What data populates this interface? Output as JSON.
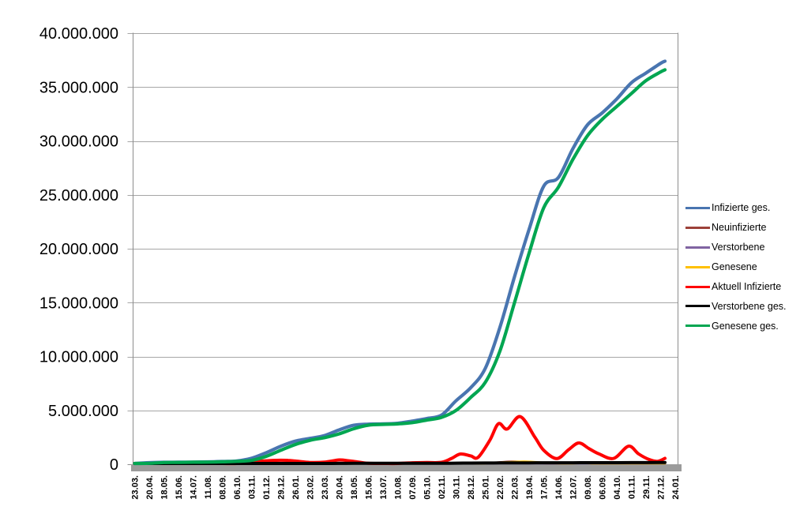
{
  "chart_data": {
    "type": "line",
    "title": "",
    "xlabel": "",
    "ylabel": "",
    "grid": "horizontal",
    "legend_position": "right",
    "background": "#FFFFFF",
    "colors": {
      "gridline": "#A6A6A6",
      "axis_line": "#8C8C8C",
      "x_axis_bar": "#9B9B9B",
      "text": "#000000"
    },
    "y_axis": {
      "min": 0,
      "max": 40000000,
      "step": 5000000,
      "tick_labels": [
        "0",
        "5.000.000",
        "10.000.000",
        "15.000.000",
        "20.000.000",
        "25.000.000",
        "30.000.000",
        "35.000.000",
        "40.000.000"
      ]
    },
    "x_axis": {
      "tick_labels": [
        "23.03.",
        "20.04.",
        "18.05.",
        "15.06.",
        "14.07.",
        "11.08.",
        "08.09.",
        "06.10.",
        "03.11.",
        "01.12.",
        "29.12.",
        "26.01.",
        "23.02.",
        "23.03.",
        "20.04.",
        "18.05.",
        "15.06.",
        "13.07.",
        "10.08.",
        "07.09.",
        "05.10.",
        "02.11.",
        "30.11.",
        "28.12.",
        "25.01.",
        "22.02.",
        "22.03.",
        "19.04.",
        "17.05.",
        "14.06.",
        "12.07.",
        "09.08.",
        "06.09.",
        "04.10.",
        "01.11.",
        "29.11.",
        "27.12.",
        "24.01."
      ]
    },
    "value_unit": "millions",
    "series": [
      {
        "name": "Infizierte ges.",
        "color": "#4975B0",
        "width": 4.2,
        "points": [
          [
            0,
            0.03
          ],
          [
            1,
            0.15
          ],
          [
            2,
            0.18
          ],
          [
            3,
            0.19
          ],
          [
            4,
            0.2
          ],
          [
            5,
            0.22
          ],
          [
            6,
            0.26
          ],
          [
            7,
            0.31
          ],
          [
            8,
            0.56
          ],
          [
            9,
            1.07
          ],
          [
            10,
            1.67
          ],
          [
            11,
            2.15
          ],
          [
            12,
            2.4
          ],
          [
            13,
            2.67
          ],
          [
            14,
            3.19
          ],
          [
            15,
            3.62
          ],
          [
            16,
            3.72
          ],
          [
            17,
            3.74
          ],
          [
            18,
            3.8
          ],
          [
            19,
            4.01
          ],
          [
            20,
            4.25
          ],
          [
            21,
            4.56
          ],
          [
            22,
            5.9
          ],
          [
            23,
            7.1
          ],
          [
            24,
            8.9
          ],
          [
            25,
            12.7
          ],
          [
            26,
            17.4
          ],
          [
            27,
            21.8
          ],
          [
            28,
            25.8
          ],
          [
            29,
            26.6
          ],
          [
            30,
            29.3
          ],
          [
            31,
            31.5
          ],
          [
            32,
            32.6
          ],
          [
            33,
            33.9
          ],
          [
            34,
            35.4
          ],
          [
            35,
            36.3
          ],
          [
            36,
            37.2
          ],
          [
            36.3,
            37.4
          ]
        ]
      },
      {
        "name": "Neuinfizierte",
        "color": "#9C4139",
        "width": 2.6,
        "points": [
          [
            0,
            0.005
          ],
          [
            2,
            0.004
          ],
          [
            4,
            0.001
          ],
          [
            6,
            0.002
          ],
          [
            7,
            0.004
          ],
          [
            8,
            0.018
          ],
          [
            9,
            0.019
          ],
          [
            10,
            0.025
          ],
          [
            11,
            0.014
          ],
          [
            12,
            0.008
          ],
          [
            13,
            0.016
          ],
          [
            14,
            0.023
          ],
          [
            15,
            0.01
          ],
          [
            16,
            0.003
          ],
          [
            17,
            0.001
          ],
          [
            18,
            0.005
          ],
          [
            19,
            0.01
          ],
          [
            20,
            0.009
          ],
          [
            21,
            0.02
          ],
          [
            22,
            0.055
          ],
          [
            23,
            0.04
          ],
          [
            24,
            0.1
          ],
          [
            25,
            0.19
          ],
          [
            25.8,
            0.25
          ],
          [
            26.5,
            0.23
          ],
          [
            27,
            0.18
          ],
          [
            28,
            0.09
          ],
          [
            29,
            0.07
          ],
          [
            30,
            0.11
          ],
          [
            30.7,
            0.12
          ],
          [
            31.5,
            0.07
          ],
          [
            32.5,
            0.05
          ],
          [
            33.5,
            0.09
          ],
          [
            34,
            0.07
          ],
          [
            35,
            0.03
          ],
          [
            36,
            0.035
          ],
          [
            36.3,
            0.03
          ]
        ]
      },
      {
        "name": "Verstorbene",
        "color": "#8064A2",
        "width": 2.6,
        "points": [
          [
            0,
            0.001
          ],
          [
            8,
            0.002
          ],
          [
            9,
            0.006
          ],
          [
            10,
            0.009
          ],
          [
            11,
            0.008
          ],
          [
            12,
            0.005
          ],
          [
            13,
            0.003
          ],
          [
            14,
            0.002
          ],
          [
            15,
            0.002
          ],
          [
            16,
            0.001
          ],
          [
            18,
            0.001
          ],
          [
            20,
            0.001
          ],
          [
            21,
            0.001
          ],
          [
            22,
            0.003
          ],
          [
            23,
            0.004
          ],
          [
            24,
            0.002
          ],
          [
            25,
            0.002
          ],
          [
            26,
            0.003
          ],
          [
            27,
            0.003
          ],
          [
            28,
            0.002
          ],
          [
            29,
            0.001
          ],
          [
            30,
            0.002
          ],
          [
            31,
            0.002
          ],
          [
            32,
            0.001
          ],
          [
            33,
            0.002
          ],
          [
            34,
            0.002
          ],
          [
            35,
            0.002
          ],
          [
            36,
            0.002
          ],
          [
            36.3,
            0.002
          ]
        ]
      },
      {
        "name": "Genesene",
        "color": "#FFC000",
        "width": 2.6,
        "points": [
          [
            0,
            0.002
          ],
          [
            1,
            0.005
          ],
          [
            2,
            0.003
          ],
          [
            4,
            0.001
          ],
          [
            6,
            0.001
          ],
          [
            7,
            0.003
          ],
          [
            8,
            0.012
          ],
          [
            9,
            0.017
          ],
          [
            10,
            0.023
          ],
          [
            11,
            0.016
          ],
          [
            12,
            0.009
          ],
          [
            13,
            0.013
          ],
          [
            14,
            0.02
          ],
          [
            15,
            0.013
          ],
          [
            16,
            0.005
          ],
          [
            17,
            0.001
          ],
          [
            18,
            0.004
          ],
          [
            19,
            0.008
          ],
          [
            20,
            0.008
          ],
          [
            21,
            0.016
          ],
          [
            22,
            0.05
          ],
          [
            23,
            0.045
          ],
          [
            24,
            0.08
          ],
          [
            25,
            0.16
          ],
          [
            26,
            0.23
          ],
          [
            26.7,
            0.25
          ],
          [
            27.5,
            0.2
          ],
          [
            28.5,
            0.1
          ],
          [
            29.5,
            0.06
          ],
          [
            30.5,
            0.1
          ],
          [
            31.5,
            0.08
          ],
          [
            32.5,
            0.05
          ],
          [
            33.5,
            0.07
          ],
          [
            34.5,
            0.06
          ],
          [
            35.5,
            0.03
          ],
          [
            36.3,
            0.025
          ]
        ]
      },
      {
        "name": "Aktuell Infizierte",
        "color": "#FF0000",
        "width": 4,
        "points": [
          [
            0,
            0.02
          ],
          [
            0.6,
            0.06
          ],
          [
            1,
            0.05
          ],
          [
            2,
            0.02
          ],
          [
            3,
            0.01
          ],
          [
            4,
            0.01
          ],
          [
            5,
            0.02
          ],
          [
            6,
            0.03
          ],
          [
            7,
            0.05
          ],
          [
            8,
            0.19
          ],
          [
            9,
            0.32
          ],
          [
            10,
            0.37
          ],
          [
            10.5,
            0.36
          ],
          [
            11,
            0.3
          ],
          [
            12,
            0.17
          ],
          [
            13,
            0.2
          ],
          [
            14,
            0.4
          ],
          [
            14.6,
            0.33
          ],
          [
            15,
            0.27
          ],
          [
            16,
            0.09
          ],
          [
            17,
            0.03
          ],
          [
            18,
            0.06
          ],
          [
            19,
            0.14
          ],
          [
            20,
            0.16
          ],
          [
            21,
            0.18
          ],
          [
            21.7,
            0.55
          ],
          [
            22.3,
            0.95
          ],
          [
            23,
            0.78
          ],
          [
            23.5,
            0.64
          ],
          [
            24.3,
            2.2
          ],
          [
            24.9,
            3.76
          ],
          [
            25.5,
            3.27
          ],
          [
            26.4,
            4.42
          ],
          [
            27.4,
            2.5
          ],
          [
            28,
            1.3
          ],
          [
            28.9,
            0.53
          ],
          [
            29.7,
            1.35
          ],
          [
            30.4,
            1.98
          ],
          [
            31.1,
            1.45
          ],
          [
            31.8,
            0.95
          ],
          [
            32.8,
            0.55
          ],
          [
            33.8,
            1.68
          ],
          [
            34.5,
            0.95
          ],
          [
            35.2,
            0.45
          ],
          [
            35.8,
            0.27
          ],
          [
            36.3,
            0.55
          ]
        ]
      },
      {
        "name": "Verstorbene ges.",
        "color": "#000000",
        "width": 4,
        "points": [
          [
            0,
            0.002
          ],
          [
            2,
            0.008
          ],
          [
            4,
            0.009
          ],
          [
            6,
            0.009
          ],
          [
            8,
            0.011
          ],
          [
            9,
            0.017
          ],
          [
            10,
            0.033
          ],
          [
            11,
            0.054
          ],
          [
            12,
            0.068
          ],
          [
            13,
            0.075
          ],
          [
            14,
            0.08
          ],
          [
            15,
            0.086
          ],
          [
            16,
            0.09
          ],
          [
            17,
            0.091
          ],
          [
            18,
            0.092
          ],
          [
            19,
            0.093
          ],
          [
            20,
            0.094
          ],
          [
            21,
            0.096
          ],
          [
            22,
            0.101
          ],
          [
            23,
            0.111
          ],
          [
            24,
            0.117
          ],
          [
            25,
            0.121
          ],
          [
            26,
            0.126
          ],
          [
            27,
            0.132
          ],
          [
            28,
            0.137
          ],
          [
            29,
            0.14
          ],
          [
            30,
            0.142
          ],
          [
            31,
            0.145
          ],
          [
            32,
            0.147
          ],
          [
            33,
            0.15
          ],
          [
            34,
            0.153
          ],
          [
            35,
            0.157
          ],
          [
            36,
            0.161
          ],
          [
            36.3,
            0.162
          ]
        ]
      },
      {
        "name": "Genesene ges.",
        "color": "#00A651",
        "width": 4.2,
        "points": [
          [
            0,
            0.01
          ],
          [
            1,
            0.09
          ],
          [
            2,
            0.16
          ],
          [
            3,
            0.17
          ],
          [
            4,
            0.19
          ],
          [
            5,
            0.2
          ],
          [
            6,
            0.23
          ],
          [
            7,
            0.27
          ],
          [
            8,
            0.36
          ],
          [
            9,
            0.73
          ],
          [
            10,
            1.3
          ],
          [
            11,
            1.83
          ],
          [
            12,
            2.22
          ],
          [
            13,
            2.47
          ],
          [
            14,
            2.82
          ],
          [
            15,
            3.3
          ],
          [
            16,
            3.63
          ],
          [
            17,
            3.7
          ],
          [
            18,
            3.74
          ],
          [
            19,
            3.86
          ],
          [
            20,
            4.1
          ],
          [
            21,
            4.35
          ],
          [
            22,
            5.0
          ],
          [
            23,
            6.2
          ],
          [
            24,
            7.6
          ],
          [
            25,
            10.5
          ],
          [
            26,
            15.0
          ],
          [
            27,
            19.6
          ],
          [
            28,
            23.8
          ],
          [
            29,
            25.7
          ],
          [
            30,
            28.3
          ],
          [
            31,
            30.5
          ],
          [
            32,
            32.0
          ],
          [
            33,
            33.2
          ],
          [
            34,
            34.4
          ],
          [
            35,
            35.6
          ],
          [
            36,
            36.4
          ],
          [
            36.3,
            36.6
          ]
        ]
      }
    ]
  }
}
